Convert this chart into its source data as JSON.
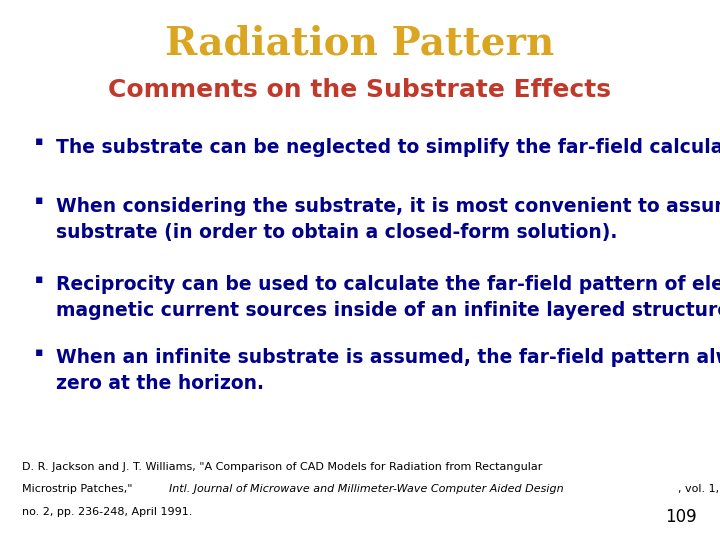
{
  "title": "Radiation Pattern",
  "title_color": "#DAA520",
  "subtitle": "Comments on the Substrate Effects",
  "subtitle_color": "#C0392B",
  "bullet_color": "#00008B",
  "bullet_points": [
    "The substrate can be neglected to simplify the far-field calculation.",
    "When considering the substrate, it is most convenient to assume an infinite\nsubstrate (in order to obtain a closed-form solution).",
    "Reciprocity can be used to calculate the far-field pattern of electric or\nmagnetic current sources inside of an infinite layered structure.",
    "When an infinite substrate is assumed, the far-field pattern always goes to\nzero at the horizon."
  ],
  "footnote_line1": "D. R. Jackson and J. T. Williams, \"A Comparison of CAD Models for Radiation from Rectangular",
  "footnote_line2_start": "Microstrip Patches,\" ",
  "footnote_line2_italic": "Intl. Journal of Microwave and Millimeter-Wave Computer Aided Design",
  "footnote_line2_end": ", vol. 1,",
  "footnote_line3": "no. 2, pp. 236-248, April 1991.",
  "page_number": "109",
  "background_color": "#FFFFFF",
  "footnote_color": "#000000",
  "page_num_color": "#000000",
  "title_fontsize": 28,
  "subtitle_fontsize": 18,
  "bullet_fontsize": 13.5,
  "footnote_fontsize": 8.0,
  "page_num_fontsize": 12
}
